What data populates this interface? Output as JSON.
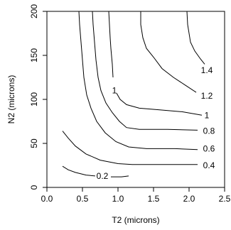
{
  "chart_data": {
    "type": "contour",
    "title": "",
    "xlabel": "T2 (microns)",
    "ylabel": "N2 (microns)",
    "xlim": [
      0,
      2.5
    ],
    "ylim": [
      0,
      200
    ],
    "xticks": [
      {
        "value": 0,
        "label": "0.0"
      },
      {
        "value": 0.5,
        "label": "0.5"
      },
      {
        "value": 1.0,
        "label": "1.0"
      },
      {
        "value": 1.5,
        "label": "1.5"
      },
      {
        "value": 2.0,
        "label": "2.0"
      },
      {
        "value": 2.5,
        "label": "2.5"
      }
    ],
    "yticks": [
      {
        "value": 0,
        "label": "0"
      },
      {
        "value": 50,
        "label": "50"
      },
      {
        "value": 100,
        "label": "100"
      },
      {
        "value": 150,
        "label": "150"
      },
      {
        "value": 200,
        "label": "200"
      }
    ],
    "grid": false,
    "colors": {
      "line": "#000000",
      "frame": "#000000"
    },
    "contours": [
      {
        "label": "0.2",
        "label_at": [
          0.78,
          13
        ],
        "segments": [
          [
            [
              0.22,
              24
            ],
            [
              0.3,
              20
            ],
            [
              0.4,
              17
            ],
            [
              0.55,
              14
            ],
            [
              0.68,
              13
            ]
          ],
          [
            [
              0.9,
              12
            ],
            [
              1.05,
              12
            ],
            [
              1.15,
              13
            ]
          ]
        ]
      },
      {
        "label": "0.4",
        "label_at": [
          2.28,
          25
        ],
        "segments": [
          [
            [
              0.22,
              64
            ],
            [
              0.3,
              56
            ],
            [
              0.4,
              47
            ],
            [
              0.55,
              38
            ],
            [
              0.75,
              31
            ],
            [
              1.0,
              27
            ],
            [
              1.2,
              26
            ],
            [
              1.6,
              26
            ],
            [
              1.9,
              26
            ],
            [
              2.12,
              26
            ]
          ]
        ]
      },
      {
        "label": "0.6",
        "label_at": [
          2.28,
          44
        ],
        "segments": [
          [
            [
              0.45,
              200
            ],
            [
              0.46,
              185
            ],
            [
              0.48,
              165
            ],
            [
              0.5,
              145
            ],
            [
              0.52,
              125
            ],
            [
              0.56,
              105
            ],
            [
              0.62,
              90
            ],
            [
              0.7,
              75
            ],
            [
              0.82,
              62
            ],
            [
              0.97,
              52
            ],
            [
              1.15,
              46
            ],
            [
              1.4,
              44
            ],
            [
              1.8,
              44
            ],
            [
              2.12,
              43
            ]
          ]
        ]
      },
      {
        "label": "0.8",
        "label_at": [
          2.28,
          64
        ],
        "segments": [
          [
            [
              0.64,
              200
            ],
            [
              0.65,
              185
            ],
            [
              0.67,
              165
            ],
            [
              0.69,
              145
            ],
            [
              0.72,
              125
            ],
            [
              0.76,
              110
            ],
            [
              0.83,
              96
            ],
            [
              0.92,
              85
            ],
            [
              1.02,
              75
            ],
            [
              1.12,
              68
            ],
            [
              1.3,
              66
            ],
            [
              1.7,
              66
            ],
            [
              2.12,
              65
            ]
          ]
        ]
      },
      {
        "label": "1",
        "label_at": [
          2.25,
          82
        ],
        "segments": [
          [
            [
              0.87,
              200
            ],
            [
              0.88,
              185
            ],
            [
              0.89,
              170
            ],
            [
              0.9,
              158
            ],
            [
              0.92,
              140
            ],
            [
              0.93,
              125
            ]
          ],
          [
            [
              0.98,
              107
            ],
            [
              1.03,
              100
            ],
            [
              1.12,
              94
            ],
            [
              1.3,
              90
            ],
            [
              1.6,
              88
            ],
            [
              1.9,
              86
            ],
            [
              2.18,
              82
            ]
          ]
        ]
      },
      {
        "label": "1.2",
        "label_at": [
          2.25,
          104
        ],
        "segments": [
          [
            [
              1.32,
              200
            ],
            [
              1.32,
              185
            ],
            [
              1.35,
              170
            ],
            [
              1.4,
              158
            ],
            [
              1.5,
              148
            ],
            [
              1.62,
              135
            ],
            [
              1.78,
              125
            ],
            [
              1.95,
              116
            ],
            [
              2.1,
              108
            ]
          ]
        ]
      },
      {
        "label": "1.4",
        "label_at": [
          2.25,
          133
        ],
        "segments": [
          [
            [
              1.97,
              200
            ],
            [
              1.98,
              185
            ],
            [
              2.02,
              165
            ],
            [
              2.08,
              155
            ],
            [
              2.16,
              146
            ],
            [
              2.22,
              140
            ]
          ]
        ]
      },
      {
        "label": "1",
        "label_at": [
          0.95,
          110
        ],
        "segments": []
      }
    ]
  }
}
